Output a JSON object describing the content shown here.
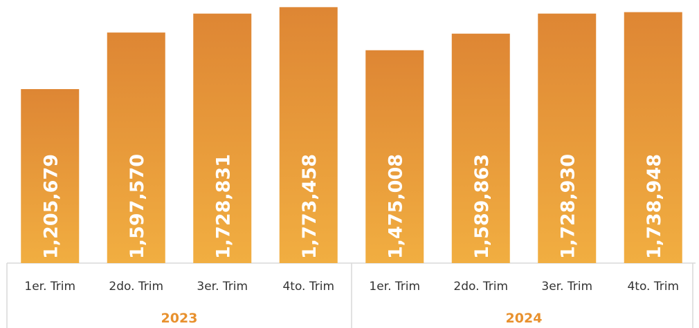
{
  "chart_data": {
    "type": "bar",
    "groups": [
      {
        "label": "2023",
        "categories": [
          "1er. Trim",
          "2do. Trim",
          "3er. Trim",
          "4to. Trim"
        ],
        "values": [
          1205679,
          1597570,
          1728831,
          1773458
        ],
        "value_labels": [
          "1,205,679",
          "1,597,570",
          "1,728,831",
          "1,773,458"
        ]
      },
      {
        "label": "2024",
        "categories": [
          "1er. Trim",
          "2do. Trim",
          "3er. Trim",
          "4to. Trim"
        ],
        "values": [
          1475008,
          1589863,
          1728930,
          1738948
        ],
        "value_labels": [
          "1,475,008",
          "1,589,863",
          "1,728,930",
          "1,738,948"
        ]
      }
    ],
    "title": "",
    "xlabel": "",
    "ylabel": "",
    "ylim": [
      0,
      1780000
    ],
    "grid": false,
    "legend": "none"
  },
  "colors": {
    "bar_top": "#DE8634",
    "bar_bottom": "#F1AE41",
    "group_label": "#E8912E",
    "axis": "#D9D9D9",
    "category_text": "#333333"
  }
}
